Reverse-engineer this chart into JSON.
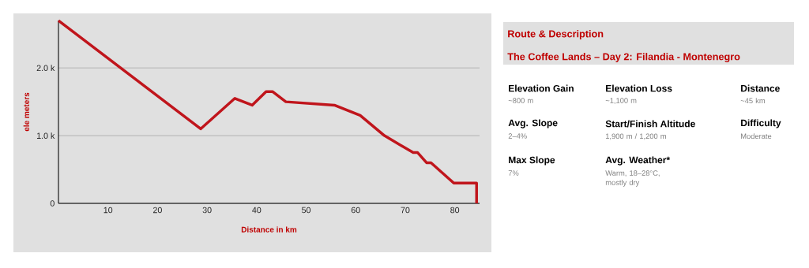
{
  "chart_data": [
    {
      "type": "line",
      "xlabel": "Distance in km",
      "ylabel": "ele meters",
      "x": [
        0,
        28.7,
        35.6,
        39.1,
        41.9,
        43.2,
        45.9,
        55.7,
        60.9,
        65.8,
        71.6,
        72.5,
        74.3,
        75.2,
        79.8,
        84.4,
        84.4
      ],
      "series": [
        {
          "color": "#c0151c",
          "values": [
            2700,
            1100,
            1550,
            1450,
            1650,
            1650,
            1500,
            1450,
            1300,
            1000,
            750,
            750,
            600,
            600,
            300,
            300,
            0
          ]
        }
      ],
      "xlim": [
        0,
        85
      ],
      "ylim": [
        0,
        2700
      ],
      "xticks": [
        10,
        20,
        30,
        40,
        50,
        60,
        70,
        80
      ],
      "yticks": [
        0,
        {
          "value": 1000,
          "label": "1.0 k"
        },
        {
          "value": 2000,
          "label": "2.0 k"
        }
      ],
      "grid": "y",
      "marker": "none",
      "line_style": "solid"
    },
    {
      "type": "other",
      "title": "Route & Description",
      "subtitle": "The Coffee Lands – Day 2: Filandia - Montenegro",
      "annotations": [
        "Elevation Gain",
        "~800 m",
        "Elevation Loss",
        "~1,100 m",
        "Distance",
        "~45 km",
        "Avg. Slope",
        "2–4%",
        "Start/Finish Altitude",
        "1,900 m / 1,200 m",
        "Difficulty",
        "Moderate",
        "Max Slope",
        "7%",
        "Avg. Weather*",
        "Warm, 18–28°C, mostly dry"
      ]
    }
  ]
}
